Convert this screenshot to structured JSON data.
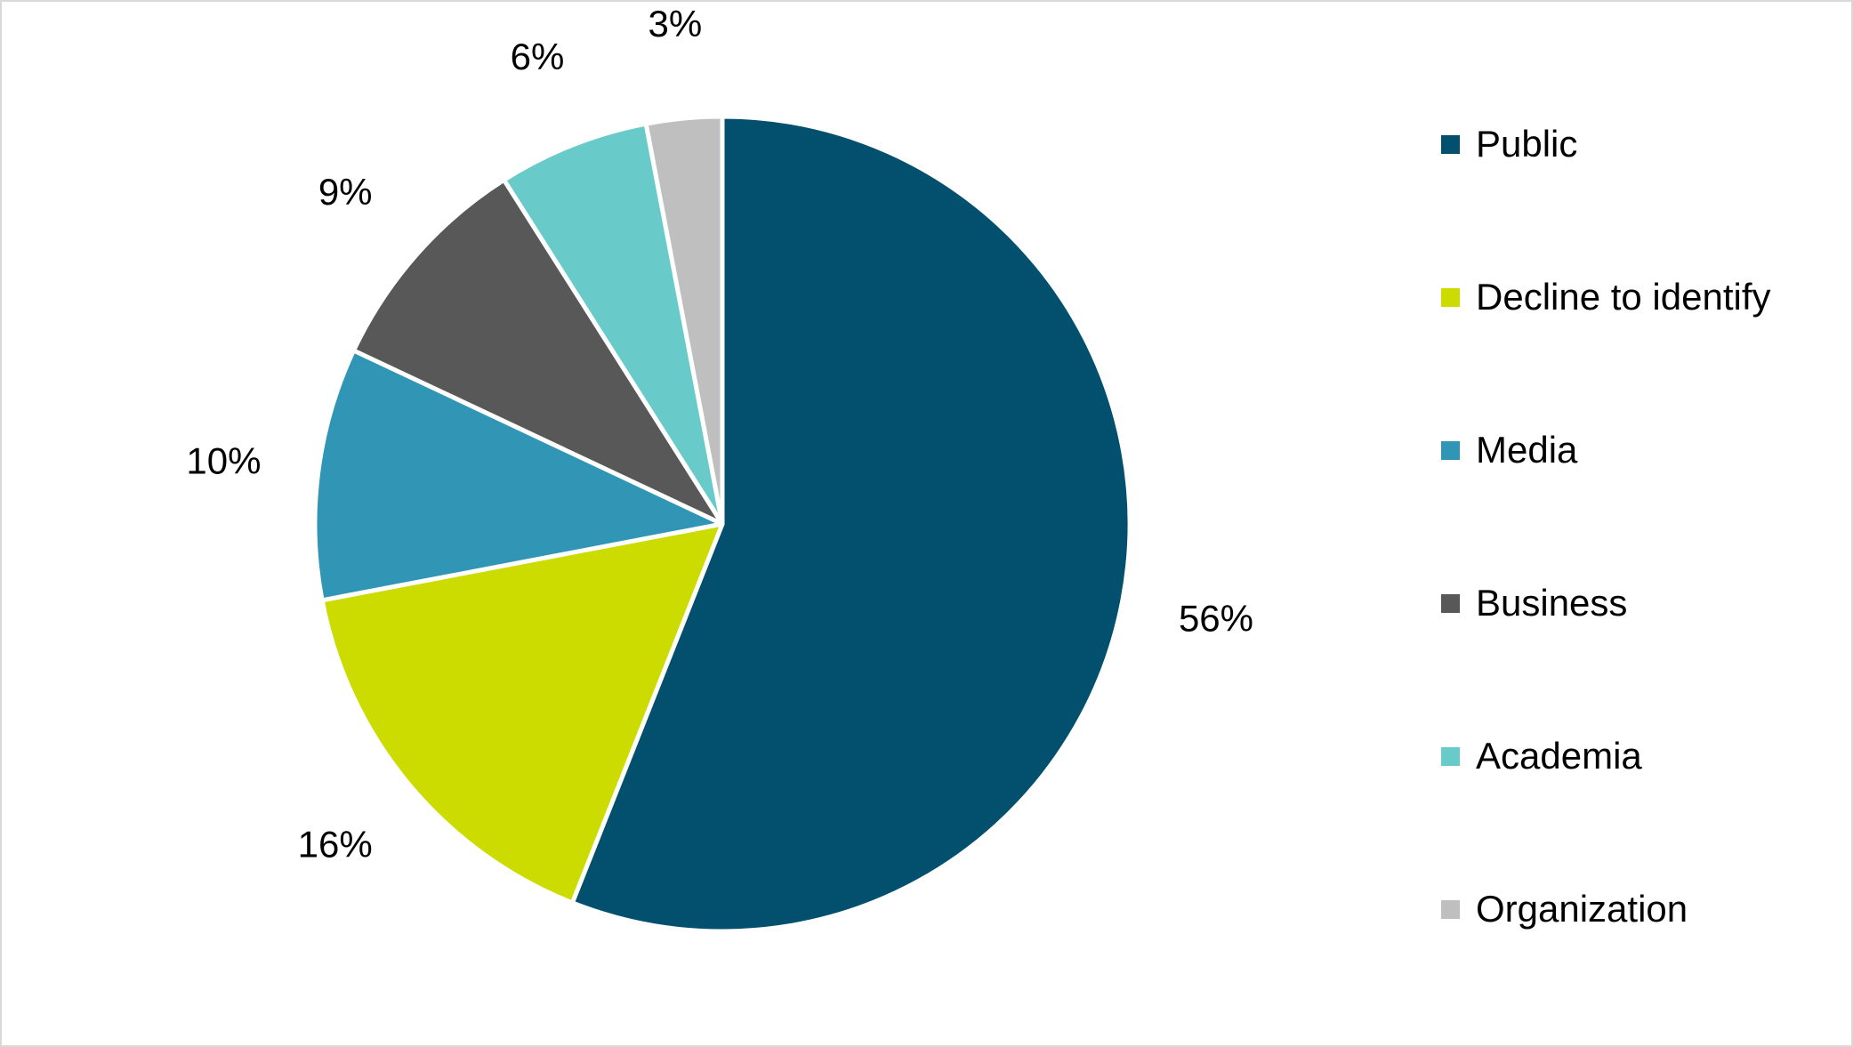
{
  "chart_data": {
    "type": "pie",
    "title": "",
    "legend_position": "right",
    "start_angle": "12 o'clock, clockwise",
    "slices": [
      {
        "label": "Public",
        "value": 56,
        "display": "56%",
        "color": "#02506e"
      },
      {
        "label": "Decline to identify",
        "value": 16,
        "display": "16%",
        "color": "#cddc00"
      },
      {
        "label": "Media",
        "value": 10,
        "display": "10%",
        "color": "#3195b5"
      },
      {
        "label": "Business",
        "value": 9,
        "display": "9%",
        "color": "#585858"
      },
      {
        "label": "Academia",
        "value": 6,
        "display": "6%",
        "color": "#69cbc9"
      },
      {
        "label": "Organization",
        "value": 3,
        "display": "3%",
        "color": "#bfbfbf"
      }
    ]
  },
  "legend": {
    "items": [
      {
        "label": "Public",
        "color": "#02506e"
      },
      {
        "label": "Decline to identify",
        "color": "#cddc00"
      },
      {
        "label": "Media",
        "color": "#3195b5"
      },
      {
        "label": "Business",
        "color": "#585858"
      },
      {
        "label": "Academia",
        "color": "#69cbc9"
      },
      {
        "label": "Organization",
        "color": "#bfbfbf"
      }
    ]
  }
}
